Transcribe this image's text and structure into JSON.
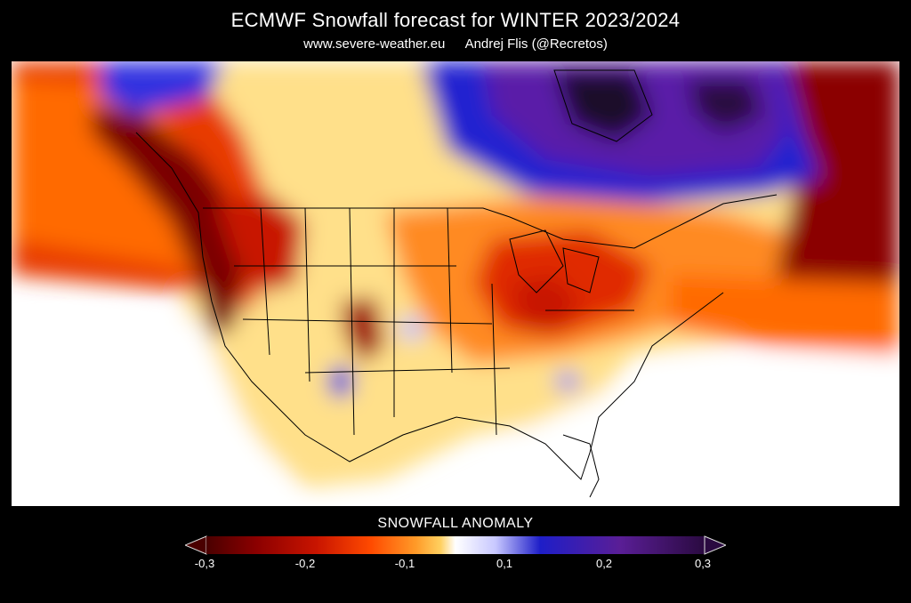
{
  "header": {
    "title": "ECMWF Snowfall forecast for WINTER 2023/2024",
    "site": "www.severe-weather.eu",
    "author": "Andrej Flis (@Recretos)"
  },
  "legend": {
    "title": "SNOWFALL ANOMALY",
    "ticks": [
      "-0,3",
      "-0,2",
      "-0,1",
      "0,1",
      "0,2",
      "0,3"
    ],
    "range": [
      -0.3,
      0.3
    ],
    "gradient": [
      "#4a0000",
      "#8b0000",
      "#c81400",
      "#ff4a00",
      "#ff9a28",
      "#ffd060",
      "#ffffff",
      "#c8c8ff",
      "#1e1ec8",
      "#5a1e96",
      "#2a0a40"
    ]
  },
  "colors": {
    "strong_deficit": "#7a0000",
    "deficit": "#e83a00",
    "moderate_deficit": "#ff8a1a",
    "weak_deficit": "#ffd87a",
    "neutral": "#ffffff",
    "weak_surplus": "#9090ff",
    "surplus": "#1c1cd6",
    "strong_surplus": "#5a1aa8",
    "very_strong_surplus": "#1a0a2a",
    "boundaries": "#000000"
  }
}
